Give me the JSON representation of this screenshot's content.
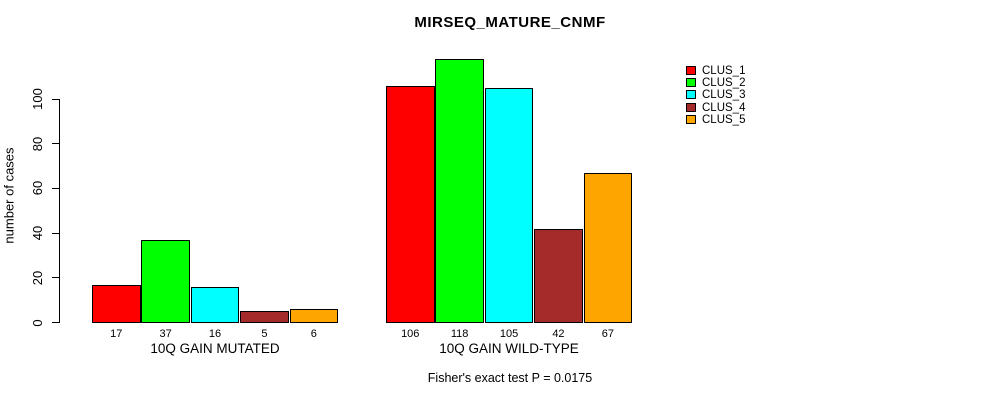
{
  "title": "MIRSEQ_MATURE_CNMF",
  "ylabel": "number of cases",
  "footer": "Fisher's exact test P = 0.0175",
  "chart_data": {
    "type": "bar",
    "title": "MIRSEQ_MATURE_CNMF",
    "ylabel": "number of cases",
    "annotation": "Fisher's exact test P = 0.0175",
    "groups": [
      {
        "label": "10Q GAIN MUTATED",
        "values": [
          17,
          37,
          16,
          5,
          6
        ]
      },
      {
        "label": "10Q GAIN WILD-TYPE",
        "values": [
          106,
          118,
          105,
          42,
          67
        ]
      }
    ],
    "series_names": [
      "CLUS_1",
      "CLUS_2",
      "CLUS_3",
      "CLUS_4",
      "CLUS_5"
    ],
    "series_colors": [
      "#ff0000",
      "#00ff00",
      "#00ffff",
      "#a52a2a",
      "#ffa500"
    ],
    "bar_border_color": "#000000",
    "yticks": [
      0,
      20,
      40,
      60,
      80,
      100
    ],
    "ylim": [
      0,
      100
    ],
    "grid": false,
    "legend_position": "top-right"
  }
}
